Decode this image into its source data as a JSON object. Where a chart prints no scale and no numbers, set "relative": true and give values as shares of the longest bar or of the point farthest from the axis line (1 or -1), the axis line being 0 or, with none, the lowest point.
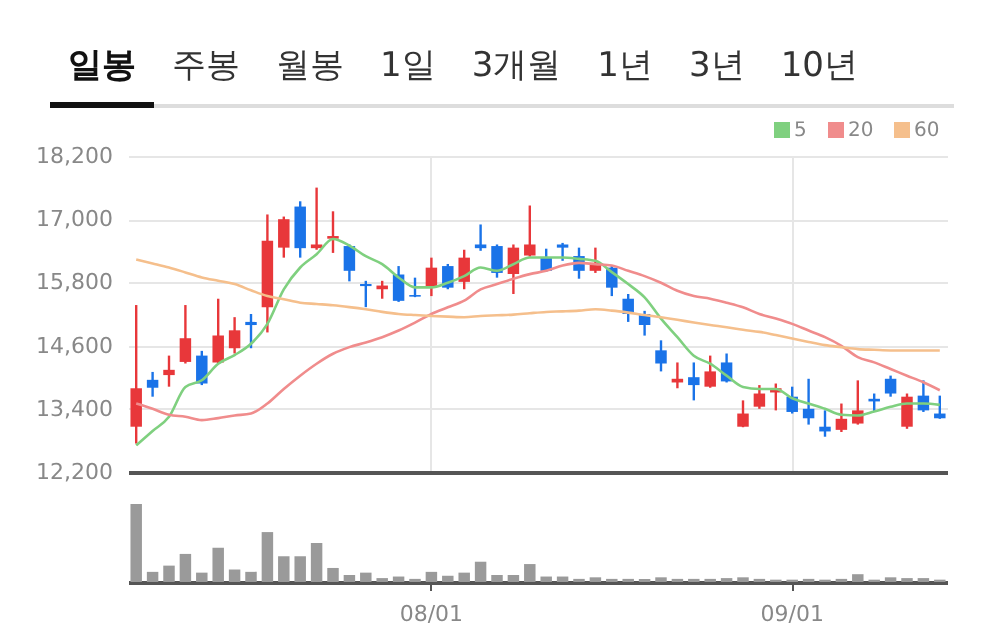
{
  "chart_data": [
    {
      "type": "candlestick",
      "annotations": [
        "일봉",
        "주봉",
        "월봉",
        "1일",
        "3개월",
        "1년",
        "3년",
        "10년"
      ],
      "categories": [
        null,
        null,
        null,
        null,
        null,
        null,
        null,
        null,
        null,
        null,
        null,
        null,
        null,
        null,
        null,
        null,
        null,
        null,
        null,
        null,
        null,
        null,
        null,
        null,
        null,
        null,
        null,
        null,
        null,
        null,
        null,
        null,
        null,
        null,
        null,
        null,
        null,
        null,
        null,
        null,
        null,
        null,
        null,
        null,
        null,
        null,
        null,
        null,
        null,
        null
      ],
      "ohlc": [
        [
          13060,
          15370,
          12740,
          13790
        ],
        [
          13950,
          14100,
          13630,
          13800
        ],
        [
          14040,
          14410,
          13820,
          14140
        ],
        [
          14290,
          15370,
          14260,
          14740
        ],
        [
          14410,
          14500,
          13850,
          13880
        ],
        [
          14280,
          15490,
          14260,
          14790
        ],
        [
          14550,
          15140,
          14450,
          14890
        ],
        [
          15050,
          15200,
          14550,
          14990
        ],
        [
          15330,
          17090,
          14850,
          16590
        ],
        [
          16460,
          17050,
          16270,
          17000
        ],
        [
          17240,
          17340,
          16270,
          16450
        ],
        [
          16450,
          17600,
          16420,
          16520
        ],
        [
          16630,
          17150,
          16360,
          16680
        ],
        [
          16490,
          16520,
          15820,
          16020
        ],
        [
          15770,
          15830,
          15330,
          15730
        ],
        [
          15670,
          15830,
          15490,
          15740
        ],
        [
          15950,
          16110,
          15430,
          15450
        ],
        [
          15560,
          15890,
          15520,
          15530
        ],
        [
          15710,
          16270,
          15540,
          16080
        ],
        [
          16110,
          16150,
          15670,
          15700
        ],
        [
          15810,
          16420,
          15670,
          16270
        ],
        [
          16520,
          16900,
          16400,
          16450
        ],
        [
          16490,
          16520,
          15890,
          15980
        ],
        [
          15960,
          16520,
          15580,
          16460
        ],
        [
          16310,
          17260,
          16290,
          16520
        ],
        [
          16270,
          16440,
          16000,
          16020
        ],
        [
          16520,
          16550,
          16210,
          16460
        ],
        [
          16300,
          16460,
          15870,
          16020
        ],
        [
          16020,
          16460,
          15980,
          16170
        ],
        [
          16080,
          16120,
          15540,
          15700
        ],
        [
          15490,
          15580,
          15050,
          15200
        ],
        [
          15200,
          15260,
          14790,
          14990
        ],
        [
          14510,
          14700,
          14110,
          14260
        ],
        [
          13900,
          14280,
          13790,
          13970
        ],
        [
          14000,
          14280,
          13560,
          13850
        ],
        [
          13820,
          14410,
          13800,
          14110
        ],
        [
          14280,
          14450,
          13900,
          13920
        ],
        [
          13060,
          13560,
          13050,
          13310
        ],
        [
          13440,
          13850,
          13400,
          13690
        ],
        [
          13710,
          13880,
          13370,
          13790
        ],
        [
          13630,
          13820,
          13310,
          13340
        ],
        [
          13400,
          13970,
          13100,
          13220
        ],
        [
          13060,
          13370,
          12870,
          12970
        ],
        [
          13000,
          13500,
          12960,
          13210
        ],
        [
          13120,
          13940,
          13100,
          13370
        ],
        [
          13590,
          13690,
          13350,
          13540
        ],
        [
          13970,
          14030,
          13630,
          13690
        ],
        [
          13060,
          13690,
          13020,
          13630
        ],
        [
          13650,
          13940,
          13340,
          13370
        ],
        [
          13310,
          13650,
          13210,
          13220
        ]
      ],
      "colors": [
        "#e8373a",
        "#1a73e8",
        "#e8373a",
        "#e8373a",
        "#1a73e8",
        "#e8373a",
        "#e8373a",
        "#1a73e8",
        "#e8373a",
        "#e8373a",
        "#1a73e8",
        "#e8373a",
        "#e8373a",
        "#1a73e8",
        "#1a73e8",
        "#e8373a",
        "#1a73e8",
        "#1a73e8",
        "#e8373a",
        "#1a73e8",
        "#e8373a",
        "#1a73e8",
        "#1a73e8",
        "#e8373a",
        "#e8373a",
        "#1a73e8",
        "#1a73e8",
        "#1a73e8",
        "#e8373a",
        "#1a73e8",
        "#1a73e8",
        "#1a73e8",
        "#1a73e8",
        "#e8373a",
        "#1a73e8",
        "#e8373a",
        "#1a73e8",
        "#e8373a",
        "#e8373a",
        "#e8373a",
        "#1a73e8",
        "#1a73e8",
        "#1a73e8",
        "#e8373a",
        "#e8373a",
        "#1a73e8",
        "#1a73e8",
        "#e8373a",
        "#1a73e8",
        "#1a73e8"
      ],
      "ylim": [
        12200,
        18200
      ],
      "yticks": [
        {
          "value": 12200,
          "label": "12,200"
        },
        {
          "value": 13400,
          "label": "13,400"
        },
        {
          "value": 14600,
          "label": "14,600"
        },
        {
          "value": 15800,
          "label": "15,800"
        },
        {
          "value": 17000,
          "label": "17,000"
        },
        {
          "value": 18200,
          "label": "18,200"
        }
      ],
      "grid": true,
      "legend": "top right",
      "tick_labels": "y",
      "series": [
        {
          "type": "line",
          "name": "5",
          "color": "#7fd07f",
          "values": [
            12706,
            12980,
            13248,
            13815,
            13941,
            14256,
            14420,
            14634,
            15012,
            15667,
            16083,
            16335,
            16625,
            16499,
            16297,
            16146,
            15894,
            15705,
            15705,
            15793,
            15919,
            16083,
            16020,
            16146,
            16272,
            16272,
            16272,
            16247,
            16209,
            15995,
            15768,
            15516,
            15113,
            14760,
            14407,
            14256,
            14029,
            13815,
            13777,
            13777,
            13601,
            13500,
            13399,
            13286,
            13273,
            13349,
            13437,
            13500,
            13500,
            13475
          ]
        },
        {
          "type": "line",
          "name": "20",
          "color": "#f08c8c",
          "values": [
            13500,
            13399,
            13286,
            13248,
            13185,
            13223,
            13273,
            13311,
            13500,
            13777,
            14029,
            14256,
            14445,
            14571,
            14659,
            14760,
            14886,
            15037,
            15201,
            15327,
            15453,
            15667,
            15768,
            15869,
            15957,
            16020,
            16121,
            16171,
            16146,
            16121,
            16020,
            15919,
            15793,
            15642,
            15541,
            15491,
            15415,
            15327,
            15201,
            15113,
            15012,
            14886,
            14760,
            14596,
            14382,
            14281,
            14155,
            14029,
            13903,
            13752
          ]
        },
        {
          "type": "line",
          "name": "60",
          "color": "#f5bf8c",
          "values": [
            16234,
            16160,
            16083,
            15990,
            15894,
            15830,
            15768,
            15650,
            15541,
            15480,
            15415,
            15390,
            15365,
            15330,
            15289,
            15240,
            15201,
            15180,
            15163,
            15150,
            15138,
            15163,
            15175,
            15188,
            15215,
            15239,
            15250,
            15264,
            15289,
            15264,
            15226,
            15180,
            15138,
            15090,
            15037,
            14990,
            14949,
            14900,
            14861,
            14800,
            14735,
            14670,
            14609,
            14570,
            14533,
            14520,
            14508,
            14508,
            14508,
            14508
          ]
        }
      ]
    },
    {
      "type": "bar",
      "relative": true,
      "color": "#9a9a9a",
      "tick_labels": "x",
      "categories": [
        null,
        null,
        null,
        null,
        null,
        null,
        null,
        null,
        null,
        null,
        null,
        null,
        null,
        null,
        null,
        null,
        null,
        null,
        "08/01",
        null,
        null,
        null,
        null,
        null,
        null,
        null,
        null,
        null,
        null,
        null,
        null,
        null,
        null,
        null,
        null,
        null,
        null,
        null,
        null,
        null,
        "09/01",
        null,
        null,
        null,
        null,
        null,
        null,
        null,
        null,
        null
      ],
      "values": [
        1,
        0.13,
        0.21,
        0.36,
        0.12,
        0.44,
        0.16,
        0.13,
        0.64,
        0.33,
        0.33,
        0.5,
        0.18,
        0.09,
        0.12,
        0.05,
        0.07,
        0.04,
        0.13,
        0.08,
        0.12,
        0.26,
        0.09,
        0.09,
        0.23,
        0.07,
        0.07,
        0.04,
        0.06,
        0.04,
        0.04,
        0.04,
        0.06,
        0.04,
        0.04,
        0.04,
        0.05,
        0.06,
        0.04,
        0.03,
        0.03,
        0.04,
        0.03,
        0.04,
        0.1,
        0.03,
        0.06,
        0.05,
        0.05,
        0.03
      ]
    }
  ]
}
